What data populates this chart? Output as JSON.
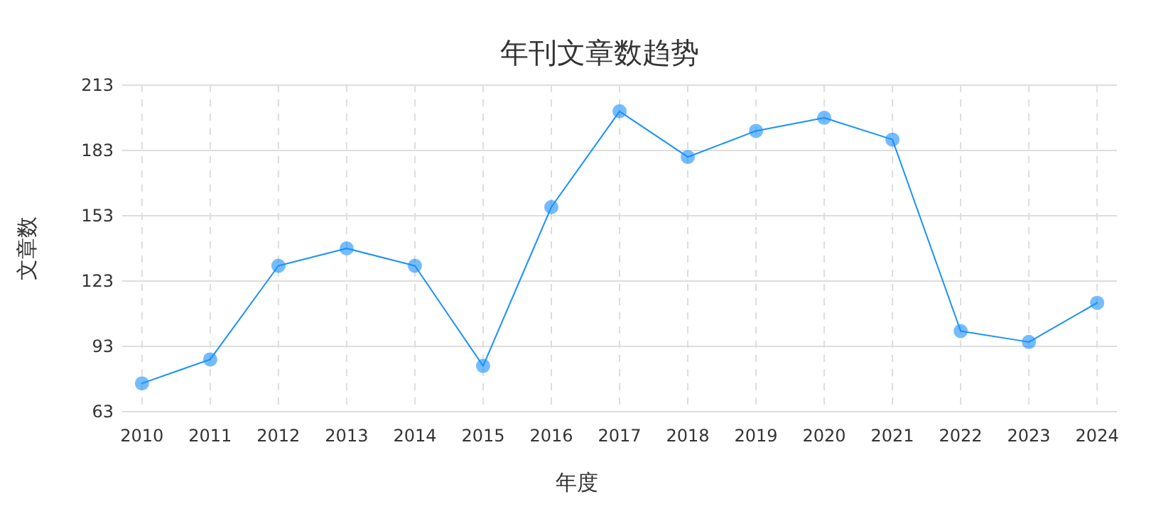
{
  "chart_data": {
    "type": "line",
    "title": "年刊文章数趋势",
    "xlabel": "年度",
    "ylabel": "文章数",
    "categories": [
      "2010",
      "2011",
      "2012",
      "2013",
      "2014",
      "2015",
      "2016",
      "2017",
      "2018",
      "2019",
      "2020",
      "2021",
      "2022",
      "2023",
      "2024"
    ],
    "series": [
      {
        "color": "#1890ff",
        "values": [
          76,
          87,
          130,
          138,
          130,
          84,
          157,
          201,
          180,
          192,
          198,
          188,
          100,
          95,
          113
        ]
      }
    ],
    "ylim": [
      63,
      213
    ],
    "yticks": [
      63,
      93,
      123,
      153,
      183,
      213
    ],
    "grid": true,
    "marker": "circle",
    "line_style": "solid"
  }
}
